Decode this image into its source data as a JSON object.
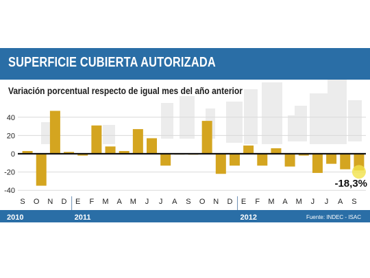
{
  "title": "SUPERFICIE CUBIERTA AUTORIZADA",
  "subtitle": "Variación porcentual respecto de igual mes del año anterior",
  "source": "Fuente: INDEC - ISAC",
  "colors": {
    "bar": "#d4a520",
    "header": "#2a6ea6",
    "highlight": "#f1e24a",
    "zero_line": "#111111"
  },
  "chart_data": {
    "type": "bar",
    "ylim": [
      -40,
      40
    ],
    "yticks": [
      -40,
      -20,
      0,
      20,
      40
    ],
    "categories": [
      "S",
      "O",
      "N",
      "D",
      "E",
      "F",
      "M",
      "A",
      "M",
      "J",
      "J",
      "A",
      "S",
      "O",
      "N",
      "D",
      "E",
      "F",
      "M",
      "A",
      "M",
      "J",
      "J",
      "A",
      "S"
    ],
    "values": [
      3,
      -35,
      47,
      2,
      -2,
      31,
      8,
      3,
      27,
      17,
      -13,
      0,
      -1,
      36,
      -22,
      -13,
      9,
      -13,
      6,
      -14,
      -2,
      -21,
      -11,
      -17,
      -18.3
    ],
    "years": [
      "2010",
      "2011",
      "2012"
    ],
    "annotation": "-18,3%"
  }
}
